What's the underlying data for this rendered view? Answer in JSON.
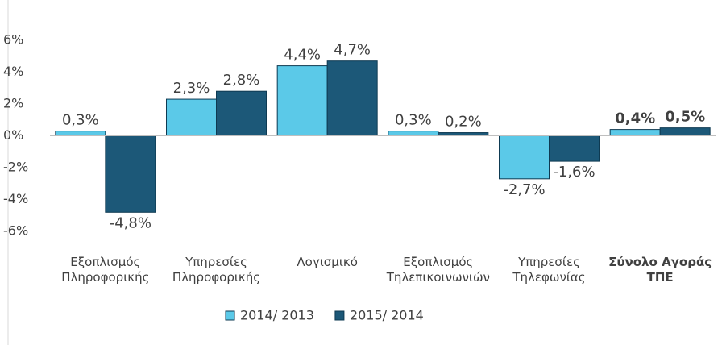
{
  "chart_data": {
    "type": "bar",
    "categories": [
      "Εξοπλισμός Πληροφορικής",
      "Υπηρεσίες Πληροφορικής",
      "Λογισμικό",
      "Εξοπλισμός Τηλεπικοινωνιών",
      "Υπηρεσίες Τηλεφωνίας",
      "Σύνολο Αγοράς ΤΠΕ"
    ],
    "series": [
      {
        "name": "2014/ 2013",
        "color": "#5bc9e8",
        "values": [
          0.3,
          2.3,
          4.4,
          0.3,
          -2.7,
          0.4
        ],
        "value_labels": [
          "0,3%",
          "2,3%",
          "4,4%",
          "0,3%",
          "-2,7%",
          "0,4%"
        ]
      },
      {
        "name": "2015/ 2014",
        "color": "#1c5878",
        "values": [
          -4.8,
          2.8,
          4.7,
          0.2,
          -1.6,
          0.5
        ],
        "value_labels": [
          "-4,8%",
          "2,8%",
          "4,7%",
          "0,2%",
          "-1,6%",
          "0,5%"
        ]
      }
    ],
    "ylim": [
      -6,
      6
    ],
    "yticks": [
      {
        "value": -6,
        "label": "-6%"
      },
      {
        "value": -4,
        "label": "-4%"
      },
      {
        "value": -2,
        "label": "-2%"
      },
      {
        "value": 0,
        "label": "0%"
      },
      {
        "value": 2,
        "label": "2%"
      },
      {
        "value": 4,
        "label": "4%"
      },
      {
        "value": 6,
        "label": "6%"
      }
    ],
    "legend": "bottom"
  }
}
